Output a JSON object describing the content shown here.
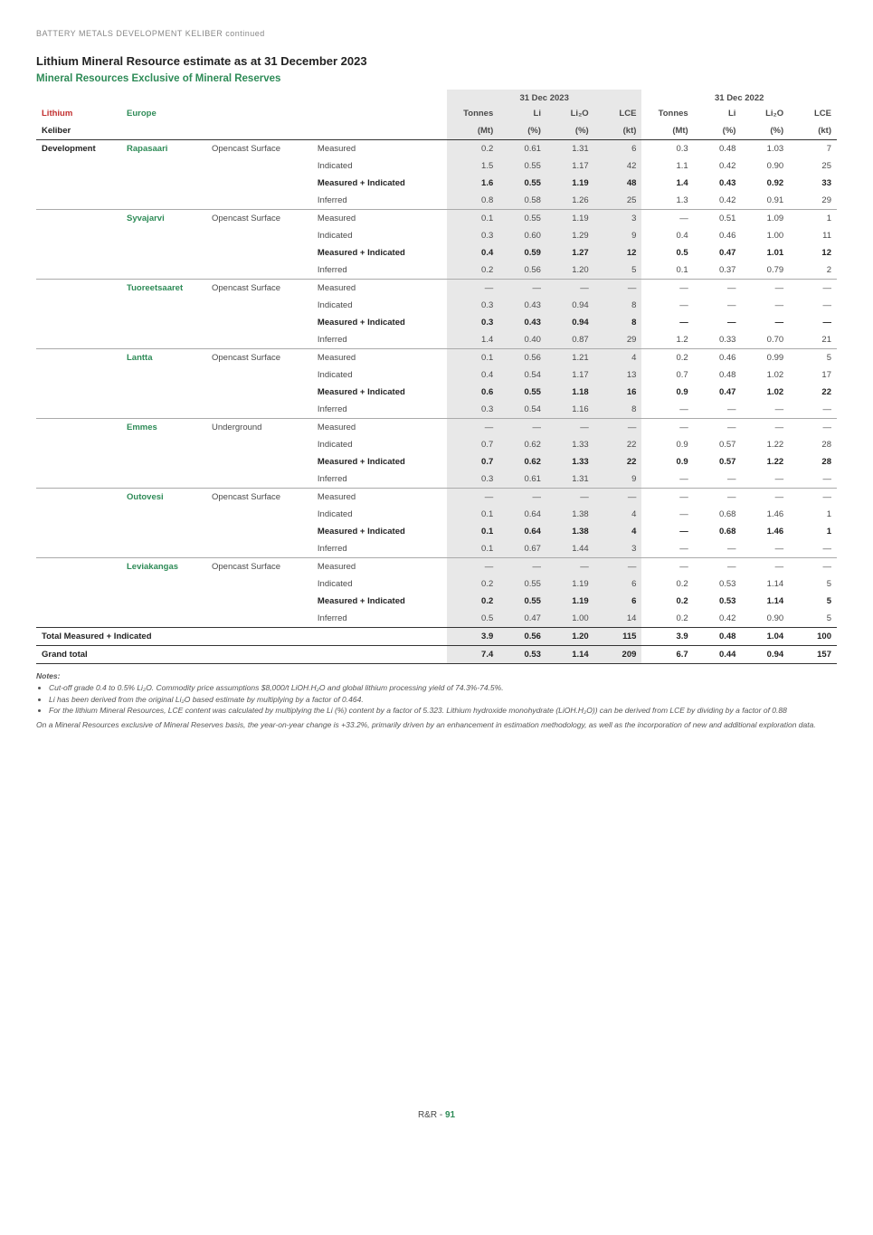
{
  "header_small": "BATTERY METALS DEVELOPMENT KELIBER continued",
  "title": "Lithium Mineral Resource estimate as at 31 December 2023",
  "subtitle": "Mineral Resources Exclusive of Mineral Reserves",
  "year_2023": "31 Dec 2023",
  "year_2022": "31 Dec 2022",
  "col_lithium": "Lithium",
  "col_europe": "Europe",
  "col_keliber": "Keliber",
  "col_tonnes": "Tonnes",
  "col_li": "Li",
  "col_li2o": "Li₂O",
  "col_lce": "LCE",
  "u_mt": "(Mt)",
  "u_pct": "(%)",
  "u_kt": "(kt)",
  "dev": "Development",
  "method_oc": "Opencast Surface",
  "method_ug": "Underground",
  "cat_meas": "Measured",
  "cat_ind": "Indicated",
  "cat_mi": "Measured + Indicated",
  "cat_inf": "Inferred",
  "dash": "—",
  "deposits": {
    "rapasaari": "Rapasaari",
    "syvajarvi": "Syvajarvi",
    "tuoreetsaaret": "Tuoreetsaaret",
    "lantta": "Lantta",
    "emmes": "Emmes",
    "outovesi": "Outovesi",
    "leviakangas": "Leviakangas"
  },
  "rows": {
    "rapasaari": {
      "meas": {
        "t23": "0.2",
        "li23": "0.61",
        "o23": "1.31",
        "l23": "6",
        "t22": "0.3",
        "li22": "0.48",
        "o22": "1.03",
        "l22": "7"
      },
      "ind": {
        "t23": "1.5",
        "li23": "0.55",
        "o23": "1.17",
        "l23": "42",
        "t22": "1.1",
        "li22": "0.42",
        "o22": "0.90",
        "l22": "25"
      },
      "mi": {
        "t23": "1.6",
        "li23": "0.55",
        "o23": "1.19",
        "l23": "48",
        "t22": "1.4",
        "li22": "0.43",
        "o22": "0.92",
        "l22": "33"
      },
      "inf": {
        "t23": "0.8",
        "li23": "0.58",
        "o23": "1.26",
        "l23": "25",
        "t22": "1.3",
        "li22": "0.42",
        "o22": "0.91",
        "l22": "29"
      }
    },
    "syvajarvi": {
      "meas": {
        "t23": "0.1",
        "li23": "0.55",
        "o23": "1.19",
        "l23": "3",
        "t22": "—",
        "li22": "0.51",
        "o22": "1.09",
        "l22": "1"
      },
      "ind": {
        "t23": "0.3",
        "li23": "0.60",
        "o23": "1.29",
        "l23": "9",
        "t22": "0.4",
        "li22": "0.46",
        "o22": "1.00",
        "l22": "11"
      },
      "mi": {
        "t23": "0.4",
        "li23": "0.59",
        "o23": "1.27",
        "l23": "12",
        "t22": "0.5",
        "li22": "0.47",
        "o22": "1.01",
        "l22": "12"
      },
      "inf": {
        "t23": "0.2",
        "li23": "0.56",
        "o23": "1.20",
        "l23": "5",
        "t22": "0.1",
        "li22": "0.37",
        "o22": "0.79",
        "l22": "2"
      }
    },
    "tuoreetsaaret": {
      "meas": {
        "t23": "—",
        "li23": "—",
        "o23": "—",
        "l23": "—",
        "t22": "—",
        "li22": "—",
        "o22": "—",
        "l22": "—"
      },
      "ind": {
        "t23": "0.3",
        "li23": "0.43",
        "o23": "0.94",
        "l23": "8",
        "t22": "—",
        "li22": "—",
        "o22": "—",
        "l22": "—"
      },
      "mi": {
        "t23": "0.3",
        "li23": "0.43",
        "o23": "0.94",
        "l23": "8",
        "t22": "—",
        "li22": "—",
        "o22": "—",
        "l22": "—"
      },
      "inf": {
        "t23": "1.4",
        "li23": "0.40",
        "o23": "0.87",
        "l23": "29",
        "t22": "1.2",
        "li22": "0.33",
        "o22": "0.70",
        "l22": "21"
      }
    },
    "lantta": {
      "meas": {
        "t23": "0.1",
        "li23": "0.56",
        "o23": "1.21",
        "l23": "4",
        "t22": "0.2",
        "li22": "0.46",
        "o22": "0.99",
        "l22": "5"
      },
      "ind": {
        "t23": "0.4",
        "li23": "0.54",
        "o23": "1.17",
        "l23": "13",
        "t22": "0.7",
        "li22": "0.48",
        "o22": "1.02",
        "l22": "17"
      },
      "mi": {
        "t23": "0.6",
        "li23": "0.55",
        "o23": "1.18",
        "l23": "16",
        "t22": "0.9",
        "li22": "0.47",
        "o22": "1.02",
        "l22": "22"
      },
      "inf": {
        "t23": "0.3",
        "li23": "0.54",
        "o23": "1.16",
        "l23": "8",
        "t22": "—",
        "li22": "—",
        "o22": "—",
        "l22": "—"
      }
    },
    "emmes": {
      "meas": {
        "t23": "—",
        "li23": "—",
        "o23": "—",
        "l23": "—",
        "t22": "—",
        "li22": "—",
        "o22": "—",
        "l22": "—"
      },
      "ind": {
        "t23": "0.7",
        "li23": "0.62",
        "o23": "1.33",
        "l23": "22",
        "t22": "0.9",
        "li22": "0.57",
        "o22": "1.22",
        "l22": "28"
      },
      "mi": {
        "t23": "0.7",
        "li23": "0.62",
        "o23": "1.33",
        "l23": "22",
        "t22": "0.9",
        "li22": "0.57",
        "o22": "1.22",
        "l22": "28"
      },
      "inf": {
        "t23": "0.3",
        "li23": "0.61",
        "o23": "1.31",
        "l23": "9",
        "t22": "—",
        "li22": "—",
        "o22": "—",
        "l22": "—"
      }
    },
    "outovesi": {
      "meas": {
        "t23": "—",
        "li23": "—",
        "o23": "—",
        "l23": "—",
        "t22": "—",
        "li22": "—",
        "o22": "—",
        "l22": "—"
      },
      "ind": {
        "t23": "0.1",
        "li23": "0.64",
        "o23": "1.38",
        "l23": "4",
        "t22": "—",
        "li22": "0.68",
        "o22": "1.46",
        "l22": "1"
      },
      "mi": {
        "t23": "0.1",
        "li23": "0.64",
        "o23": "1.38",
        "l23": "4",
        "t22": "—",
        "li22": "0.68",
        "o22": "1.46",
        "l22": "1"
      },
      "inf": {
        "t23": "0.1",
        "li23": "0.67",
        "o23": "1.44",
        "l23": "3",
        "t22": "—",
        "li22": "—",
        "o22": "—",
        "l22": "—"
      }
    },
    "leviakangas": {
      "meas": {
        "t23": "—",
        "li23": "—",
        "o23": "—",
        "l23": "—",
        "t22": "—",
        "li22": "—",
        "o22": "—",
        "l22": "—"
      },
      "ind": {
        "t23": "0.2",
        "li23": "0.55",
        "o23": "1.19",
        "l23": "6",
        "t22": "0.2",
        "li22": "0.53",
        "o22": "1.14",
        "l22": "5"
      },
      "mi": {
        "t23": "0.2",
        "li23": "0.55",
        "o23": "1.19",
        "l23": "6",
        "t22": "0.2",
        "li22": "0.53",
        "o22": "1.14",
        "l22": "5"
      },
      "inf": {
        "t23": "0.5",
        "li23": "0.47",
        "o23": "1.00",
        "l23": "14",
        "t22": "0.2",
        "li22": "0.42",
        "o22": "0.90",
        "l22": "5"
      }
    }
  },
  "total_mi_label": "Total Measured + Indicated",
  "total_mi": {
    "t23": "3.9",
    "li23": "0.56",
    "o23": "1.20",
    "l23": "115",
    "t22": "3.9",
    "li22": "0.48",
    "o22": "1.04",
    "l22": "100"
  },
  "grand_label": "Grand total",
  "grand": {
    "t23": "7.4",
    "li23": "0.53",
    "o23": "1.14",
    "l23": "209",
    "t22": "6.7",
    "li22": "0.44",
    "o22": "0.94",
    "l22": "157"
  },
  "notes_label": "Notes:",
  "note1": "Cut-off grade 0.4 to 0.5% Li₂O. Commodity price assumptions $8,000/t LiOH.H₂O and global lithium processing yield of 74.3%-74.5%.",
  "note2": "Li has been derived from the original Li₂O based estimate by multiplying by a factor of 0.464.",
  "note3": "For the lithium Mineral Resources, LCE content was calculated by multiplying the Li (%) content by a factor of 5.323. Lithium hydroxide monohydrate (LiOH.H₂O)) can be derived from LCE by dividing by a factor of 0.88",
  "note_para": "On a Mineral Resources exclusive of Mineral Reserves basis, the year-on-year change is +33.2%, primarily driven by an enhancement in estimation methodology, as well as the incorporation of new and additional exploration data.",
  "footer_prefix": "R&R - ",
  "footer_page": "91"
}
